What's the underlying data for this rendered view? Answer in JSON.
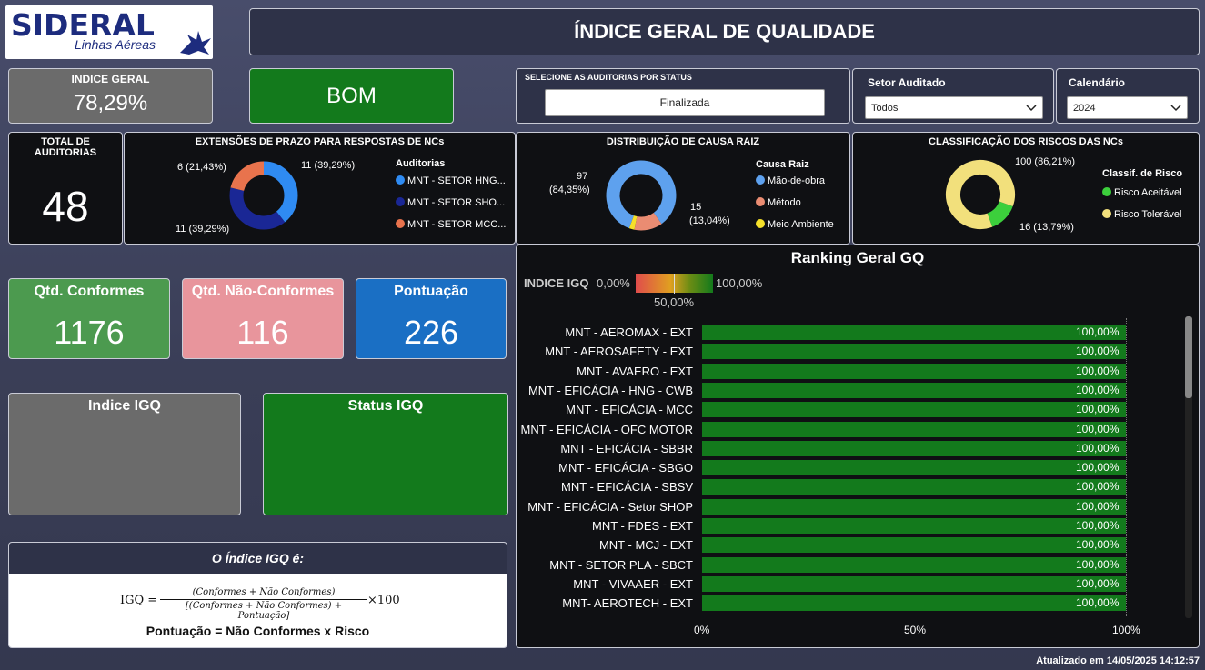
{
  "logo": {
    "brand": "SIDERAL",
    "subtitle": "Linhas Aéreas"
  },
  "title": "ÍNDICE GERAL DE QUALIDADE",
  "indice_geral": {
    "label": "INDICE GERAL",
    "value": "78,29%"
  },
  "status_badge": "BOM",
  "slicer_status": {
    "label": "SELECIONE AS AUDITORIAS POR STATUS",
    "value": "Finalizada"
  },
  "slicer_setor": {
    "label": "Setor Auditado",
    "value": "Todos"
  },
  "slicer_calendario": {
    "label": "Calendário",
    "value": "2024"
  },
  "total_auditorias": {
    "label_line1": "TOTAL DE",
    "label_line2": "AUDITORIAS",
    "value": "48"
  },
  "kpis": {
    "conformes": {
      "label": "Qtd. Conformes",
      "value": "1176"
    },
    "nao_conformes": {
      "label": "Qtd. Não-Conformes",
      "value": "116"
    },
    "pontuacao": {
      "label": "Pontuação",
      "value": "226"
    }
  },
  "igq": {
    "indice_label": "Indice IGQ",
    "status_label": "Status IGQ"
  },
  "formula": {
    "header": "O Índice IGQ é:",
    "lhs": "IGQ =",
    "numerator": "(Conformes + Não Conformes)",
    "denominator": "[(Conformes + Não Conformes) + Pontuação]",
    "times": "×100",
    "pontuacao": "Pontuação = Não Conformes x Risco"
  },
  "footer": "Atualizado em 14/05/2025 14:12:57",
  "colors": {
    "green": "#137a1c",
    "gray": "#6b6b6b",
    "pink": "#e8959c",
    "blue": "#1a6fc4",
    "kpi_green": "#4c9a4f",
    "donut_blue": "#2f8bf2",
    "donut_navy": "#1a2795",
    "donut_orange": "#e8734d",
    "cause_blue": "#5ea1ee",
    "cause_salmon": "#ea8c72",
    "cause_yellow": "#f5e02a",
    "risk_green": "#3ccf3c",
    "risk_yellow": "#f2e07c"
  },
  "chart_data": [
    {
      "type": "pie",
      "title": "EXTENSÕES DE PRAZO PARA RESPOSTAS DE NCs",
      "legend_title": "Auditorias",
      "categories": [
        "MNT - SETOR HNG...",
        "MNT - SETOR SHO...",
        "MNT - SETOR MCC..."
      ],
      "values": [
        11,
        11,
        6
      ],
      "labels": [
        "11 (39,29%)",
        "11 (39,29%)",
        "6 (21,43%)"
      ]
    },
    {
      "type": "pie",
      "title": "DISTRIBUIÇÃO DE CAUSA RAIZ",
      "legend_title": "Causa Raiz",
      "categories": [
        "Mão-de-obra",
        "Método",
        "Meio Ambiente"
      ],
      "values": [
        97,
        15,
        3
      ],
      "labels": [
        "97",
        "(84,35%)",
        "15",
        "(13,04%)"
      ]
    },
    {
      "type": "pie",
      "title": "CLASSIFICAÇÃO DOS RISCOS DAS NCs",
      "legend_title": "Classif. de Risco",
      "categories": [
        "Risco Aceitável",
        "Risco Tolerável"
      ],
      "values": [
        16,
        100
      ],
      "labels": [
        "100 (86,21%)",
        "16 (13,79%)"
      ]
    },
    {
      "type": "bar",
      "title": "Ranking Geral GQ",
      "legend": {
        "label": "INDICE IGQ",
        "min": "0,00%",
        "mid": "50,00%",
        "max": "100,00%"
      },
      "categories": [
        "MNT - AEROMAX - EXT",
        "MNT - AEROSAFETY - EXT",
        "MNT - AVAERO - EXT",
        "MNT - EFICÁCIA - HNG - CWB",
        "MNT - EFICÁCIA - MCC",
        "MNT - EFICÁCIA - OFC MOTOR",
        "MNT - EFICÁCIA - SBBR",
        "MNT - EFICÁCIA - SBGO",
        "MNT - EFICÁCIA - SBSV",
        "MNT - EFICÁCIA - Setor SHOP",
        "MNT - FDES - EXT",
        "MNT - MCJ - EXT",
        "MNT - SETOR PLA - SBCT",
        "MNT - VIVAAER - EXT",
        "MNT- AEROTECH - EXT"
      ],
      "values": [
        100,
        100,
        100,
        100,
        100,
        100,
        100,
        100,
        100,
        100,
        100,
        100,
        100,
        100,
        100
      ],
      "value_labels": [
        "100,00%",
        "100,00%",
        "100,00%",
        "100,00%",
        "100,00%",
        "100,00%",
        "100,00%",
        "100,00%",
        "100,00%",
        "100,00%",
        "100,00%",
        "100,00%",
        "100,00%",
        "100,00%",
        "100,00%"
      ],
      "x_ticks": [
        "0%",
        "50%",
        "100%"
      ],
      "xlim": [
        0,
        100
      ]
    }
  ]
}
